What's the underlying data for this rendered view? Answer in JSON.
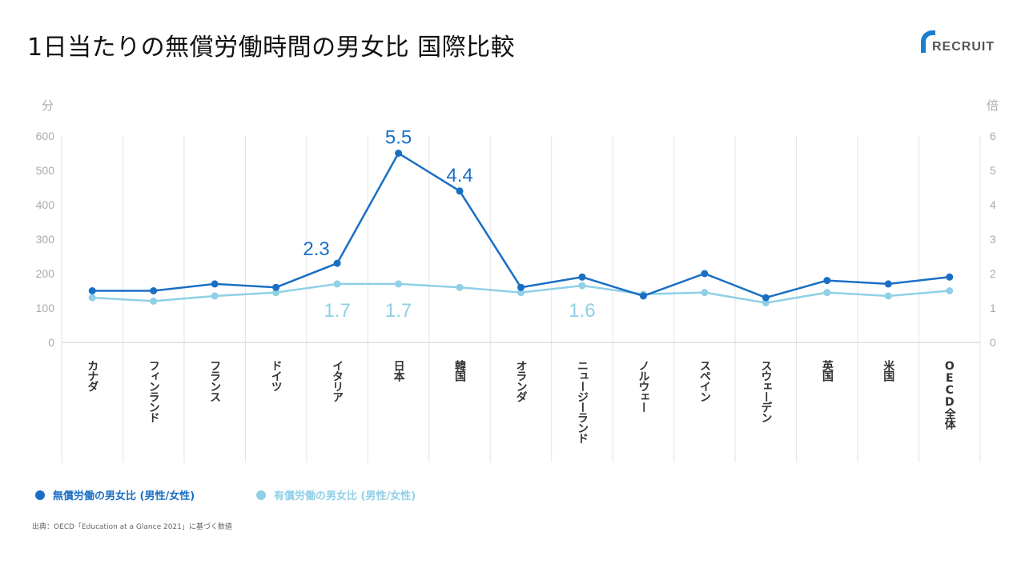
{
  "title": "1日当たりの無償労働時間の男女比 国際比較",
  "logo_text": "RECRUIT",
  "source": "出典：OECD「Education at a Glance 2021」に基づく数値",
  "colors": {
    "unpaid": "#1a6fc4",
    "paid": "#8fd0e6",
    "grid": "#e3e3e3",
    "axis_text": "#aaaaaa"
  },
  "chart_data": {
    "type": "line",
    "title": "1日当たりの無償労働時間の男女比 国際比較",
    "ylabel_left": "分",
    "ylabel_right": "倍",
    "ylim_left": [
      0,
      600
    ],
    "ylim_right": [
      0,
      6
    ],
    "yticks_left": [
      "0",
      "100",
      "200",
      "300",
      "400",
      "500",
      "600"
    ],
    "yticks_right": [
      "0",
      "1",
      "2",
      "3",
      "4",
      "5",
      "6"
    ],
    "categories": [
      "カナダ",
      "フィンランド",
      "フランス",
      "ドイツ",
      "イタリア",
      "日本",
      "韓国",
      "オランダ",
      "ニュージーランド",
      "ノルウェー",
      "スペイン",
      "スウェーデン",
      "英国",
      "米国",
      "OECD全体"
    ],
    "series": [
      {
        "name": "無償労働の男女比 (男性/女性)",
        "values": [
          1.5,
          1.5,
          1.7,
          1.6,
          2.3,
          5.5,
          4.4,
          1.6,
          1.9,
          1.35,
          2.0,
          1.3,
          1.8,
          1.7,
          1.9
        ],
        "labels": {
          "4": "2.3",
          "5": "5.5",
          "6": "4.4"
        }
      },
      {
        "name": "有償労働の男女比 (男性/女性)",
        "values": [
          1.3,
          1.2,
          1.35,
          1.45,
          1.7,
          1.7,
          1.6,
          1.45,
          1.65,
          1.4,
          1.45,
          1.15,
          1.45,
          1.35,
          1.5
        ],
        "labels": {
          "4": "1.7",
          "5": "1.7",
          "8": "1.6"
        }
      }
    ],
    "grid": true,
    "legend_position": "bottom-left"
  }
}
